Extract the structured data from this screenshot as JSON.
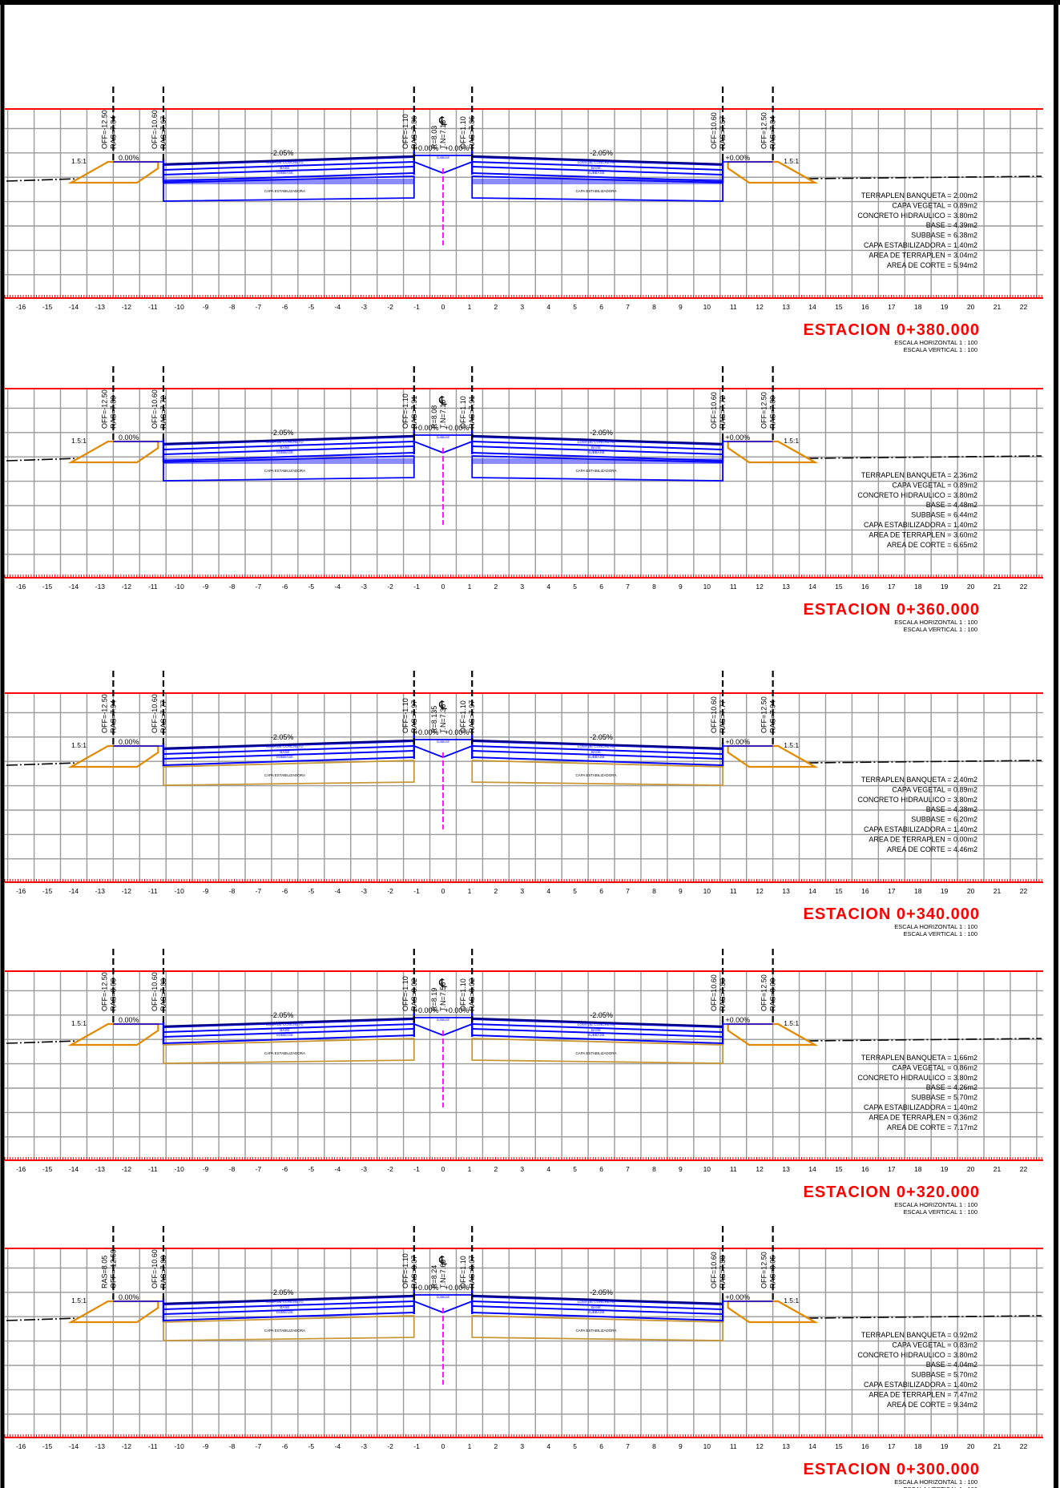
{
  "colors": {
    "grid": "#9a9a9a",
    "frame": "#000000",
    "section_line": "#ff0000",
    "pavement": "#0000ff",
    "pavement_dark": "#000080",
    "terraplen": "#e08a00",
    "stabilizer": "#c89838",
    "axis": "#ff00ff",
    "station_title": "#ff0000",
    "text": "#000000"
  },
  "axis_ticks": [
    "-16",
    "-15",
    "-14",
    "-13",
    "-12",
    "-11",
    "-10",
    "-9",
    "-8",
    "-7",
    "-6",
    "-5",
    "-4",
    "-3",
    "-2",
    "-1",
    "0",
    "1",
    "2",
    "3",
    "4",
    "5",
    "6",
    "7",
    "8",
    "9",
    "10",
    "11",
    "12",
    "13",
    "14",
    "15",
    "16",
    "17",
    "18",
    "19",
    "20",
    "21",
    "22"
  ],
  "labels": {
    "slope_left": "1.5:1",
    "slope_right": "1.5:1",
    "crossfall_left": "-2.05%",
    "crossfall_right": "-2.05%",
    "zero_left": "0.00%",
    "zero_right": "+0.00%",
    "center_left": "+0.00%",
    "center_right": "+0.00%",
    "centerline_symbol": "℄",
    "losa": "LOSA DE CONCRETO",
    "base": "BASE",
    "subbase": "SUBBASE",
    "capa_estab": "CAPA ESTABILIZADORA"
  },
  "sections": [
    {
      "station": "ESTACION 0+380.000",
      "scale_h": "ESCALA HORIZONTAL 1 : 100",
      "scale_v": "ESCALA VERTICAL 1 : 100",
      "offsets": {
        "left_outer": [
          "OFF=-12.50",
          "RAS=7.84"
        ],
        "left_inner": [
          "OFF=-10.60",
          "RAS=7.67"
        ],
        "center_left": [
          "OFF=-1.10",
          "RAS=7.86"
        ],
        "center_rt": [
          "R=8.03",
          "T.N=7.13"
        ],
        "center_right": [
          "OFF=1.10",
          "RAS=7.86"
        ],
        "right_inner": [
          "OFF=10.60",
          "RAS=7.67"
        ],
        "right_outer": [
          "OFF=12.50",
          "RAS=7.84"
        ]
      },
      "areas": [
        {
          "label": "TERRAPLEN BANQUETA",
          "value": "2.00m2"
        },
        {
          "label": "CAPA VEGETAL",
          "value": "0.89m2"
        },
        {
          "label": "CONCRETO HIDRAULICO",
          "value": "3.80m2"
        },
        {
          "label": "BASE",
          "value": "4.39m2"
        },
        {
          "label": "SUBBASE",
          "value": "6.38m2"
        },
        {
          "label": "CAPA ESTABILIZADORA",
          "value": "1.40m2"
        },
        {
          "label": "AREA DE TERRAPLEN",
          "value": "3.04m2"
        },
        {
          "label": "AREA DE CORTE",
          "value": "5.94m2"
        }
      ]
    },
    {
      "station": "ESTACION 0+360.000",
      "scale_h": "ESCALA HORIZONTAL 1 : 100",
      "scale_v": "ESCALA VERTICAL 1 : 100",
      "offsets": {
        "left_outer": [
          "OFF=-12.50",
          "RAS=7.89"
        ],
        "left_inner": [
          "OFF=-10.60",
          "RAS=7.72"
        ],
        "center_left": [
          "OFF=-1.10",
          "RAS=7.91"
        ],
        "center_rt": [
          "R=8.08",
          "T.N=7.15"
        ],
        "center_right": [
          "OFF=1.10",
          "RAS=7.91"
        ],
        "right_inner": [
          "OFF=10.60",
          "RAS=7.72"
        ],
        "right_outer": [
          "OFF=12.50",
          "RAS=7.89"
        ]
      },
      "areas": [
        {
          "label": "TERRAPLEN BANQUETA",
          "value": "2.36m2"
        },
        {
          "label": "CAPA VEGETAL",
          "value": "0.89m2"
        },
        {
          "label": "CONCRETO HIDRAULICO",
          "value": "3.80m2"
        },
        {
          "label": "BASE",
          "value": "4.48m2"
        },
        {
          "label": "SUBBASE",
          "value": "6.44m2"
        },
        {
          "label": "CAPA ESTABILIZADORA",
          "value": "1.40m2"
        },
        {
          "label": "AREA DE TERRAPLEN",
          "value": "3.60m2"
        },
        {
          "label": "AREA DE CORTE",
          "value": "6.65m2"
        }
      ]
    },
    {
      "station": "ESTACION 0+340.000",
      "scale_h": "ESCALA HORIZONTAL 1 : 100",
      "scale_v": "ESCALA VERTICAL 1 : 100",
      "offsets": {
        "left_outer": [
          "OFF=-12.50",
          "RAS=7.94"
        ],
        "left_inner": [
          "OFF=-10.60",
          "RAS=7.77"
        ],
        "center_left": [
          "OFF=-1.10",
          "RAS=7.97"
        ],
        "center_rt": [
          "R=8.135",
          "T.N=7.36"
        ],
        "center_right": [
          "OFF=1.10",
          "RAS=7.97"
        ],
        "right_inner": [
          "OFF=10.60",
          "RAS=7.77"
        ],
        "right_outer": [
          "OFF=12.50",
          "RAS=7.94"
        ]
      },
      "areas": [
        {
          "label": "TERRAPLEN BANQUETA",
          "value": "2.40m2"
        },
        {
          "label": "CAPA VEGETAL",
          "value": "0.89m2"
        },
        {
          "label": "CONCRETO HIDRAULICO",
          "value": "3.80m2"
        },
        {
          "label": "BASE",
          "value": "4.38m2"
        },
        {
          "label": "SUBBASE",
          "value": "6.20m2"
        },
        {
          "label": "CAPA ESTABILIZADORA",
          "value": "1.40m2"
        },
        {
          "label": "AREA DE TERRAPLEN",
          "value": "0.00m2"
        },
        {
          "label": "AREA DE CORTE",
          "value": "4.46m2"
        }
      ]
    },
    {
      "station": "ESTACION 0+320.000",
      "scale_h": "ESCALA HORIZONTAL 1 : 100",
      "scale_v": "ESCALA VERTICAL 1 : 100",
      "offsets": {
        "left_outer": [
          "OFF=-12.50",
          "RAS=8.00"
        ],
        "left_inner": [
          "OFF=-10.60",
          "RAS=7.83"
        ],
        "center_left": [
          "OFF=-1.10",
          "RAS=8.02"
        ],
        "center_rt": [
          "R=8.19",
          "T.N=7.56"
        ],
        "center_right": [
          "OFF=1.10",
          "RAS=8.02"
        ],
        "right_inner": [
          "OFF=10.60",
          "RAS=7.83"
        ],
        "right_outer": [
          "OFF=12.50",
          "RAS=8.00"
        ]
      },
      "areas": [
        {
          "label": "TERRAPLEN BANQUETA",
          "value": "1.66m2"
        },
        {
          "label": "CAPA VEGETAL",
          "value": "0.86m2"
        },
        {
          "label": "CONCRETO HIDRAULICO",
          "value": "3.80m2"
        },
        {
          "label": "BASE",
          "value": "4.26m2"
        },
        {
          "label": "SUBBASE",
          "value": "5.70m2"
        },
        {
          "label": "CAPA ESTABILIZADORA",
          "value": "1.40m2"
        },
        {
          "label": "AREA DE TERRAPLEN",
          "value": "0.36m2"
        },
        {
          "label": "AREA DE CORTE",
          "value": "7.17m2"
        }
      ]
    },
    {
      "station": "ESTACION 0+300.000",
      "scale_h": "ESCALA HORIZONTAL 1 : 100",
      "scale_v": "ESCALA VERTICAL 1 : 100",
      "offsets": {
        "left_outer": [
          "RAS=8.05",
          "OFF=-12.50"
        ],
        "left_inner": [
          "OFF=-10.60",
          "RAS=7.88"
        ],
        "center_left": [
          "OFF=-1.10",
          "RAS=8.07"
        ],
        "center_rt": [
          "R=8.24",
          "T.N=7.69"
        ],
        "center_right": [
          "OFF=1.10",
          "RAS=8.07"
        ],
        "right_inner": [
          "OFF=10.60",
          "RAS=7.88"
        ],
        "right_outer": [
          "OFF=12.50",
          "RAS=8.05"
        ]
      },
      "areas": [
        {
          "label": "TERRAPLEN BANQUETA",
          "value": "0.92m2"
        },
        {
          "label": "CAPA VEGETAL",
          "value": "0.83m2"
        },
        {
          "label": "CONCRETO HIDRAULICO",
          "value": "3.80m2"
        },
        {
          "label": "BASE",
          "value": "4.04m2"
        },
        {
          "label": "SUBBASE",
          "value": "5.70m2"
        },
        {
          "label": "CAPA ESTABILIZADORA",
          "value": "1.40m2"
        },
        {
          "label": "AREA DE TERRAPLEN",
          "value": "7.47m2"
        },
        {
          "label": "AREA DE CORTE",
          "value": "9.34m2"
        }
      ]
    }
  ]
}
